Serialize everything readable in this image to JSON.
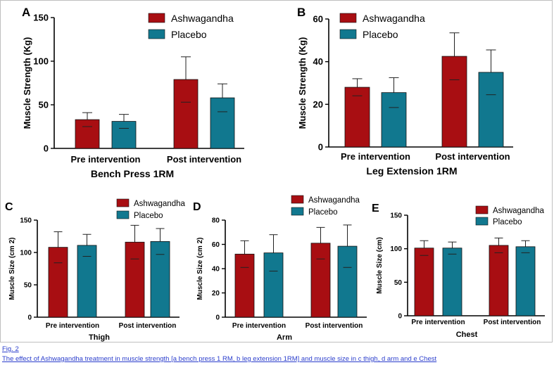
{
  "figure": {
    "link_text": "Fig. 2",
    "caption": "The effect of Ashwagandha treatment in muscle strength [a bench press 1 RM, b leg extension 1RM] and muscle size in c thigh, d arm and e Chest"
  },
  "colors": {
    "ashwagandha": "#a80e12",
    "placebo": "#11788f",
    "axis": "#000000"
  },
  "chart_data": [
    {
      "panel": "A",
      "type": "bar",
      "title": "Bench Press 1RM",
      "ylabel": "Muscle Strength (Kg)",
      "ylim": [
        0,
        150
      ],
      "yticks": [
        0,
        50,
        100,
        150
      ],
      "categories": [
        "Pre intervention",
        "Post intervention"
      ],
      "legend": "top",
      "series": [
        {
          "name": "Ashwagandha",
          "values": [
            33,
            79
          ],
          "errors": [
            8,
            26
          ]
        },
        {
          "name": "Placebo",
          "values": [
            31,
            58
          ],
          "errors": [
            8,
            16
          ]
        }
      ]
    },
    {
      "panel": "B",
      "type": "bar",
      "title": "Leg Extension 1RM",
      "ylabel": "Muscle Strength (Kg)",
      "ylim": [
        0,
        60
      ],
      "yticks": [
        0,
        20,
        40,
        60
      ],
      "categories": [
        "Pre intervention",
        "Post intervention"
      ],
      "legend": "top",
      "series": [
        {
          "name": "Ashwagandha",
          "values": [
            28,
            42.5
          ],
          "errors": [
            4,
            11
          ]
        },
        {
          "name": "Placebo",
          "values": [
            25.5,
            35
          ],
          "errors": [
            7,
            10.5
          ]
        }
      ]
    },
    {
      "panel": "C",
      "type": "bar",
      "title": "Thigh",
      "ylabel": "Muscle Size (cm 2)",
      "ylim": [
        0,
        150
      ],
      "yticks": [
        0,
        50,
        100,
        150
      ],
      "categories": [
        "Pre intervention",
        "Post intervention"
      ],
      "legend": "top",
      "series": [
        {
          "name": "Ashwagandha",
          "values": [
            108,
            116
          ],
          "errors": [
            24,
            26
          ]
        },
        {
          "name": "Placebo",
          "values": [
            111,
            117
          ],
          "errors": [
            17,
            20
          ]
        }
      ]
    },
    {
      "panel": "D",
      "type": "bar",
      "title": "Arm",
      "ylabel": "Muscle Size (cm 2)",
      "ylim": [
        0,
        80
      ],
      "yticks": [
        0,
        20,
        40,
        60,
        80
      ],
      "categories": [
        "Pre intervention",
        "Post intervention"
      ],
      "legend": "top",
      "series": [
        {
          "name": "Ashwagandha",
          "values": [
            52,
            61
          ],
          "errors": [
            11,
            13
          ]
        },
        {
          "name": "Placebo",
          "values": [
            53,
            58.5
          ],
          "errors": [
            15,
            17.5
          ]
        }
      ]
    },
    {
      "panel": "E",
      "type": "bar",
      "title": "Chest",
      "ylabel": "Muscle Size (cm)",
      "ylim": [
        0,
        150
      ],
      "yticks": [
        0,
        50,
        100,
        150
      ],
      "categories": [
        "Pre intervention",
        "Post intervention"
      ],
      "legend": "top",
      "series": [
        {
          "name": "Ashwagandha",
          "values": [
            101,
            105
          ],
          "errors": [
            11,
            11
          ]
        },
        {
          "name": "Placebo",
          "values": [
            101,
            103
          ],
          "errors": [
            9,
            9
          ]
        }
      ]
    }
  ]
}
